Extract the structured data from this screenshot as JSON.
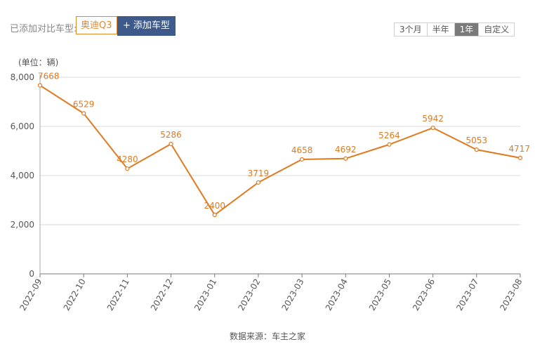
{
  "toolbar": {
    "added_label": "已添加对比车型:",
    "car_tag": "奥迪Q3",
    "add_button_label": "添加车型",
    "ranges": [
      "3个月",
      "半年",
      "1年",
      "自定义"
    ],
    "active_range": "1年"
  },
  "chart_data": {
    "type": "line",
    "unit_label": "(单位：辆)",
    "x": [
      "2022-09",
      "2022-10",
      "2022-11",
      "2022-12",
      "2023-01",
      "2023-02",
      "2023-03",
      "2023-04",
      "2023-05",
      "2023-06",
      "2023-07",
      "2023-08"
    ],
    "series": [
      {
        "values": [
          7668,
          6529,
          4280,
          5286,
          2400,
          3719,
          4658,
          4692,
          5264,
          5942,
          5053,
          4717
        ]
      }
    ],
    "ylim": [
      0,
      8000
    ],
    "yticks": [
      0,
      2000,
      4000,
      6000,
      8000
    ],
    "ytick_labels": [
      "0",
      "2,000",
      "4,000",
      "6,000",
      "8,000"
    ],
    "grid": true,
    "color": "#e07a1f"
  },
  "footer": {
    "source": "数据来源：车主之家"
  }
}
